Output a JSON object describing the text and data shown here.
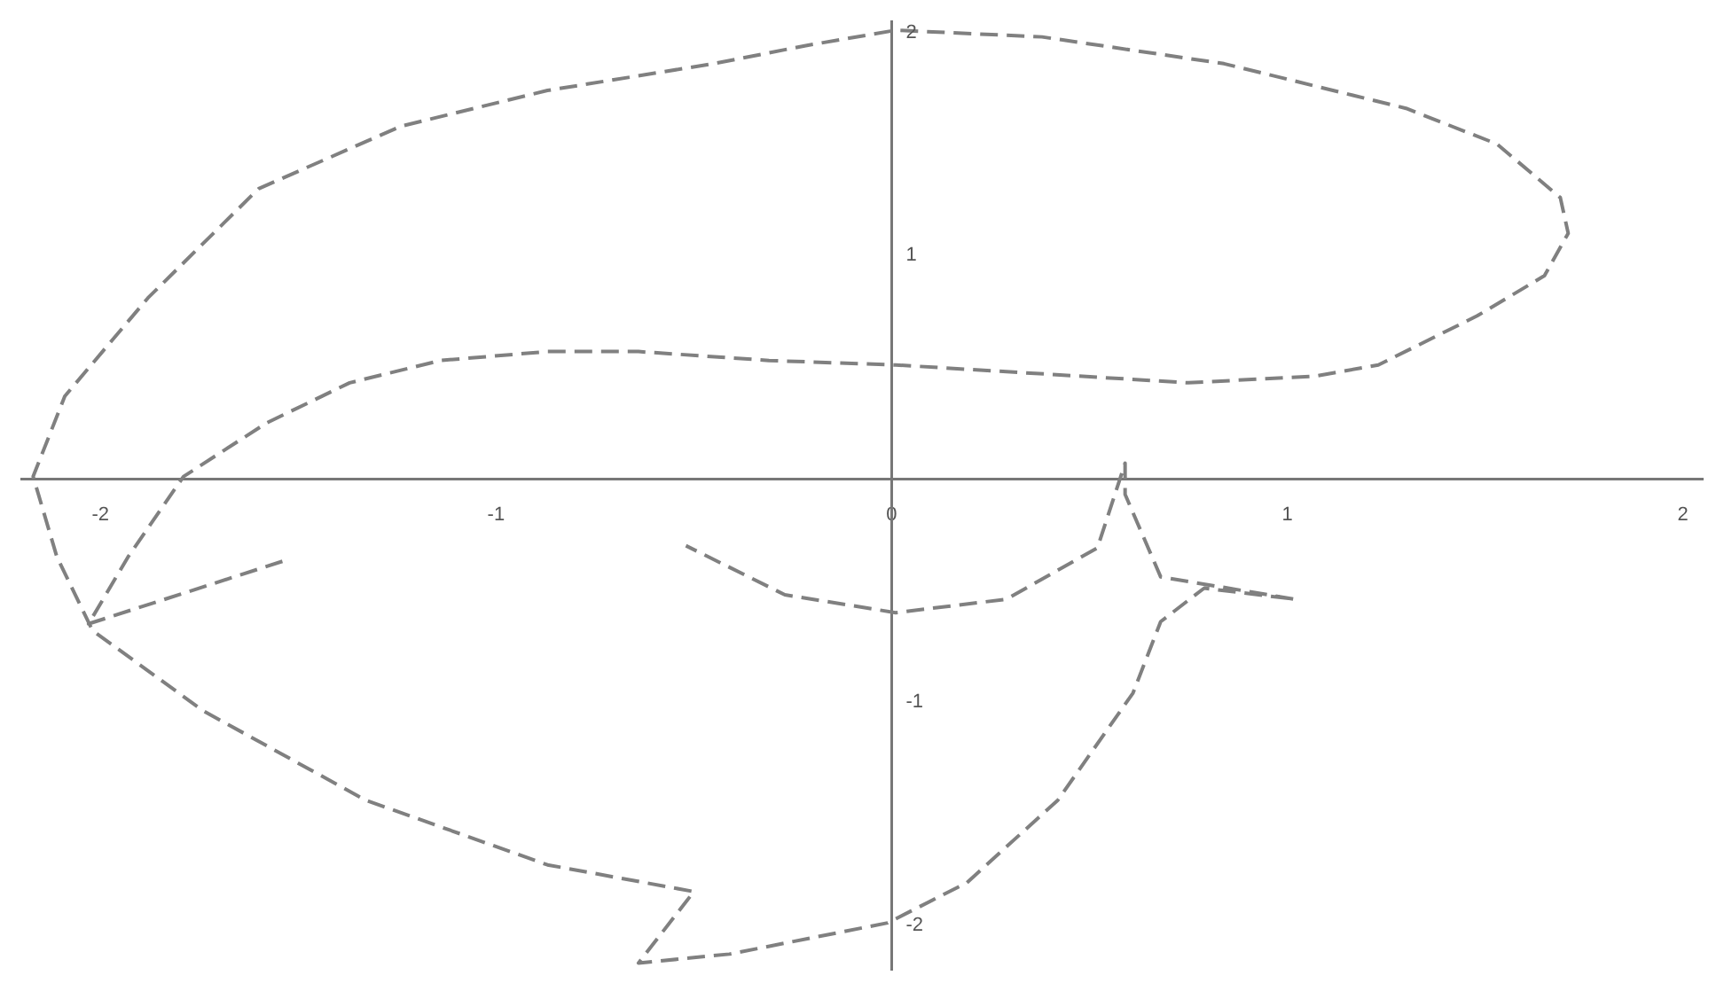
{
  "chart_data": {
    "type": "line",
    "x": [
      -1.54,
      -2.03,
      -1.93,
      -1.79,
      -1.58,
      -1.37,
      -1.14,
      -0.87,
      -0.64,
      -0.31,
      0.01,
      0.29,
      0.75,
      1.07,
      1.23,
      1.48,
      1.65,
      1.71,
      1.69,
      1.53,
      1.3,
      0.84,
      0.38,
      0.01,
      -0.22,
      -0.45,
      -0.87,
      -1.24,
      -1.6,
      -1.88,
      -2.09,
      -2.17,
      -2.11,
      -2.02,
      -1.74,
      -1.33,
      -0.87,
      -0.5,
      -0.64,
      -0.41,
      -0.01,
      0.19,
      0.42,
      0.61,
      0.68,
      0.79,
      1.02,
      0.68,
      0.59,
      0.59,
      0.52,
      0.29,
      0.01,
      -0.27,
      -0.52
    ],
    "series": [
      {
        "color": "#808080",
        "values": [
          -0.37,
          -0.65,
          -0.35,
          0.01,
          0.25,
          0.43,
          0.53,
          0.57,
          0.57,
          0.53,
          0.51,
          0.48,
          0.43,
          0.46,
          0.51,
          0.73,
          0.91,
          1.1,
          1.26,
          1.5,
          1.66,
          1.86,
          1.98,
          2.01,
          1.94,
          1.86,
          1.74,
          1.58,
          1.3,
          0.81,
          0.37,
          0.01,
          -0.35,
          -0.68,
          -1.04,
          -1.44,
          -1.73,
          -1.85,
          -2.17,
          -2.13,
          -1.99,
          -1.81,
          -1.44,
          -0.96,
          -0.64,
          -0.49,
          -0.54,
          -0.44,
          -0.07,
          0.07,
          -0.31,
          -0.54,
          -0.6,
          -0.52,
          -0.3
        ]
      }
    ],
    "xlim": [
      -2.2,
      2.05
    ],
    "ylim": [
      -2.2,
      2.05
    ],
    "xticks": [
      -2,
      -1,
      0,
      1,
      2
    ],
    "yticks": [
      -2,
      -1,
      1,
      2
    ],
    "grid": false,
    "legend": false,
    "marker": "none",
    "line_style": "dashed"
  }
}
